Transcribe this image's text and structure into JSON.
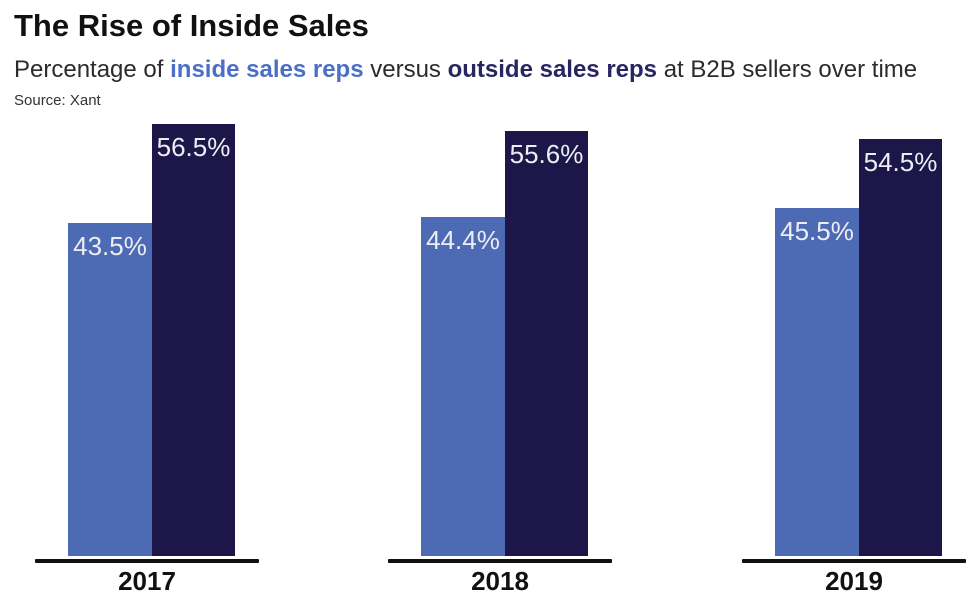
{
  "header": {
    "title": "The Rise of Inside Sales",
    "subtitle": {
      "prefix": "Percentage of ",
      "inside": "inside sales reps",
      "middle": " versus ",
      "outside": "outside sales reps",
      "suffix": " at B2B sellers over time"
    },
    "source": "Source: Xant"
  },
  "colors": {
    "inside_bar": "#4C6BB4",
    "outside_bar": "#1C1748",
    "inside_subtitle_text": "#4B6FC7",
    "outside_subtitle_text": "#2A2560",
    "bar_value_label": "#EDEDF3",
    "axis_line": "#111111",
    "year_label": "#111111",
    "background": "#FFFFFF"
  },
  "chart_data": {
    "type": "bar",
    "categories": [
      "2017",
      "2018",
      "2019"
    ],
    "series": [
      {
        "name": "inside sales reps",
        "values": [
          43.5,
          44.4,
          45.5
        ],
        "color": "#4C6BB4"
      },
      {
        "name": "outside sales reps",
        "values": [
          56.5,
          55.6,
          54.5
        ],
        "color": "#1C1748"
      }
    ],
    "value_labels": [
      [
        "43.5%",
        "56.5%"
      ],
      [
        "44.4%",
        "55.6%"
      ],
      [
        "45.5%",
        "54.5%"
      ]
    ],
    "value_suffix": "%",
    "title": "The Rise of Inside Sales",
    "xlabel": "",
    "ylabel": "",
    "ylim": [
      0,
      60
    ],
    "grid": false,
    "legend_position": "inline-in-subtitle"
  }
}
